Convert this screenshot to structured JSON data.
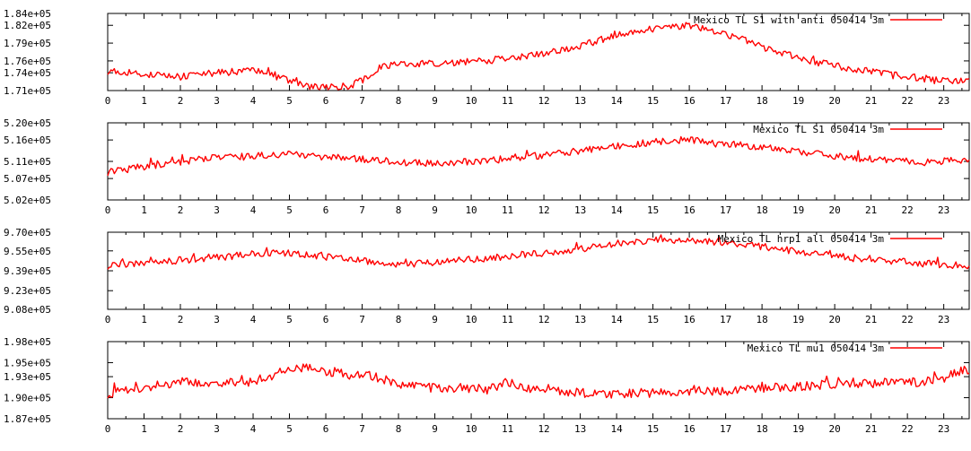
{
  "colors": {
    "series": "#ff0000",
    "axes": "#000000",
    "background": "#ffffff"
  },
  "chart_data": [
    {
      "type": "line",
      "legend_position": "top-right",
      "series": [
        {
          "name": "Mexico TL S1 with anti 050414 3m",
          "x": [
            0,
            0.5,
            1,
            1.5,
            2,
            2.5,
            3,
            3.5,
            4,
            4.5,
            5,
            5.5,
            6,
            6.5,
            7,
            7.5,
            8,
            8.5,
            9,
            9.5,
            10,
            10.5,
            11,
            11.5,
            12,
            12.5,
            13,
            13.5,
            14,
            14.5,
            15,
            15.5,
            16,
            16.5,
            17,
            17.5,
            18,
            18.5,
            19,
            19.5,
            20,
            20.5,
            21,
            21.5,
            22,
            22.5,
            23,
            23.5
          ],
          "values": [
            174300,
            174100,
            173800,
            173500,
            173300,
            173700,
            174000,
            174200,
            174300,
            174000,
            172500,
            171700,
            171600,
            171400,
            172700,
            175000,
            175300,
            175500,
            175600,
            175700,
            176000,
            176100,
            176400,
            176700,
            177300,
            177900,
            178600,
            179400,
            180500,
            181000,
            181500,
            181800,
            182000,
            181400,
            180500,
            179500,
            178300,
            177400,
            176500,
            175800,
            175200,
            174600,
            174200,
            173800,
            173400,
            173000,
            172700,
            172500
          ]
        }
      ],
      "y_tick_labels": [
        "1.84e+05",
        "1.82e+05",
        "1.79e+05",
        "1.76e+05",
        "1.74e+05",
        "1.71e+05"
      ],
      "y_tick_values": [
        184000,
        182000,
        179000,
        176000,
        174000,
        171000
      ],
      "x_tick_labels": [
        "0",
        "1",
        "2",
        "3",
        "4",
        "5",
        "6",
        "7",
        "8",
        "9",
        "10",
        "11",
        "12",
        "13",
        "14",
        "15",
        "16",
        "17",
        "18",
        "19",
        "20",
        "21",
        "22",
        "23"
      ],
      "xlim": [
        0,
        23.7
      ],
      "ylim": [
        171000,
        184000
      ]
    },
    {
      "type": "line",
      "legend_position": "top-right",
      "series": [
        {
          "name": "Mexico TL S1 050414 3m",
          "x": [
            0,
            0.5,
            1,
            1.5,
            2,
            2.5,
            3,
            3.5,
            4,
            4.5,
            5,
            5.5,
            6,
            6.5,
            7,
            7.5,
            8,
            8.5,
            9,
            9.5,
            10,
            10.5,
            11,
            11.5,
            12,
            12.5,
            13,
            13.5,
            14,
            14.5,
            15,
            15.5,
            16,
            16.5,
            17,
            17.5,
            18,
            18.5,
            19,
            19.5,
            20,
            20.5,
            21,
            21.5,
            22,
            22.5,
            23,
            23.5
          ],
          "values": [
            508500,
            509300,
            509800,
            510300,
            510900,
            511400,
            511900,
            512100,
            512400,
            512500,
            512600,
            512300,
            512000,
            511800,
            511500,
            511200,
            510800,
            510600,
            510700,
            510800,
            511000,
            511300,
            511600,
            512000,
            512500,
            513000,
            513500,
            514000,
            514600,
            515000,
            515500,
            515900,
            516000,
            515600,
            515100,
            514700,
            514200,
            513800,
            513300,
            512800,
            512300,
            511800,
            511500,
            511300,
            511000,
            510800,
            511000,
            511400
          ]
        }
      ],
      "y_tick_labels": [
        "5.20e+05",
        "5.16e+05",
        "5.11e+05",
        "5.07e+05",
        "5.02e+05"
      ],
      "y_tick_values": [
        520000,
        516000,
        511000,
        507000,
        502000
      ],
      "x_tick_labels": [
        "0",
        "1",
        "2",
        "3",
        "4",
        "5",
        "6",
        "7",
        "8",
        "9",
        "10",
        "11",
        "12",
        "13",
        "14",
        "15",
        "16",
        "17",
        "18",
        "19",
        "20",
        "21",
        "22",
        "23"
      ],
      "xlim": [
        0,
        23.7
      ],
      "ylim": [
        502000,
        520000
      ]
    },
    {
      "type": "line",
      "legend_position": "top-right",
      "series": [
        {
          "name": "Mexico TL hrp1 all 050414 3m",
          "x": [
            0,
            0.5,
            1,
            1.5,
            2,
            2.5,
            3,
            3.5,
            4,
            4.5,
            5,
            5.5,
            6,
            6.5,
            7,
            7.5,
            8,
            8.5,
            9,
            9.5,
            10,
            10.5,
            11,
            11.5,
            12,
            12.5,
            13,
            13.5,
            14,
            14.5,
            15,
            15.5,
            16,
            16.5,
            17,
            17.5,
            18,
            18.5,
            19,
            19.5,
            20,
            20.5,
            21,
            21.5,
            22,
            22.5,
            23,
            23.5
          ],
          "values": [
            943000,
            944500,
            945500,
            946500,
            947500,
            948500,
            949500,
            951000,
            952500,
            953500,
            953000,
            951500,
            950000,
            948500,
            947000,
            945000,
            943000,
            944500,
            946000,
            947000,
            948000,
            949000,
            950500,
            952000,
            953500,
            955000,
            956500,
            958500,
            960500,
            962000,
            963500,
            964000,
            963500,
            962500,
            961500,
            960000,
            958500,
            956500,
            954500,
            952500,
            951000,
            949500,
            948000,
            947000,
            946000,
            945000,
            944000,
            943000
          ]
        }
      ],
      "y_tick_labels": [
        "9.70e+05",
        "9.55e+05",
        "9.39e+05",
        "9.23e+05",
        "9.08e+05"
      ],
      "y_tick_values": [
        970000,
        955000,
        939000,
        923000,
        908000
      ],
      "x_tick_labels": [
        "0",
        "1",
        "2",
        "3",
        "4",
        "5",
        "6",
        "7",
        "8",
        "9",
        "10",
        "11",
        "12",
        "13",
        "14",
        "15",
        "16",
        "17",
        "18",
        "19",
        "20",
        "21",
        "22",
        "23"
      ],
      "xlim": [
        0,
        23.7
      ],
      "ylim": [
        908000,
        970000
      ]
    },
    {
      "type": "line",
      "legend_position": "top-right",
      "series": [
        {
          "name": "Mexico TL mu1 050414 3m",
          "x": [
            0,
            0.5,
            1,
            1.5,
            2,
            2.5,
            3,
            3.5,
            4,
            4.5,
            5,
            5.5,
            6,
            6.5,
            7,
            7.5,
            8,
            8.5,
            9,
            9.5,
            10,
            10.5,
            11,
            11.5,
            12,
            12.5,
            13,
            13.5,
            14,
            14.5,
            15,
            15.5,
            16,
            16.5,
            17,
            17.5,
            18,
            18.5,
            19,
            19.5,
            20,
            20.5,
            21,
            21.5,
            22,
            22.5,
            23,
            23.5
          ],
          "values": [
            190600,
            191000,
            191500,
            191800,
            192200,
            192100,
            192000,
            192200,
            192500,
            193000,
            194300,
            194200,
            193800,
            193500,
            193300,
            192800,
            192000,
            191500,
            191400,
            191300,
            191200,
            191300,
            192200,
            191200,
            191000,
            190800,
            190700,
            190600,
            190600,
            190700,
            190700,
            190800,
            190900,
            190900,
            191000,
            191200,
            191300,
            191500,
            191600,
            191700,
            191900,
            192000,
            192100,
            192100,
            192200,
            192300,
            192700,
            194000
          ]
        }
      ],
      "y_tick_labels": [
        "1.98e+05",
        "1.95e+05",
        "1.93e+05",
        "1.90e+05",
        "1.87e+05"
      ],
      "y_tick_values": [
        198000,
        195000,
        193000,
        190000,
        187000
      ],
      "x_tick_labels": [
        "0",
        "1",
        "2",
        "3",
        "4",
        "5",
        "6",
        "7",
        "8",
        "9",
        "10",
        "11",
        "12",
        "13",
        "14",
        "15",
        "16",
        "17",
        "18",
        "19",
        "20",
        "21",
        "22",
        "23"
      ],
      "xlim": [
        0,
        23.7
      ],
      "ylim": [
        187000,
        198000
      ]
    }
  ]
}
